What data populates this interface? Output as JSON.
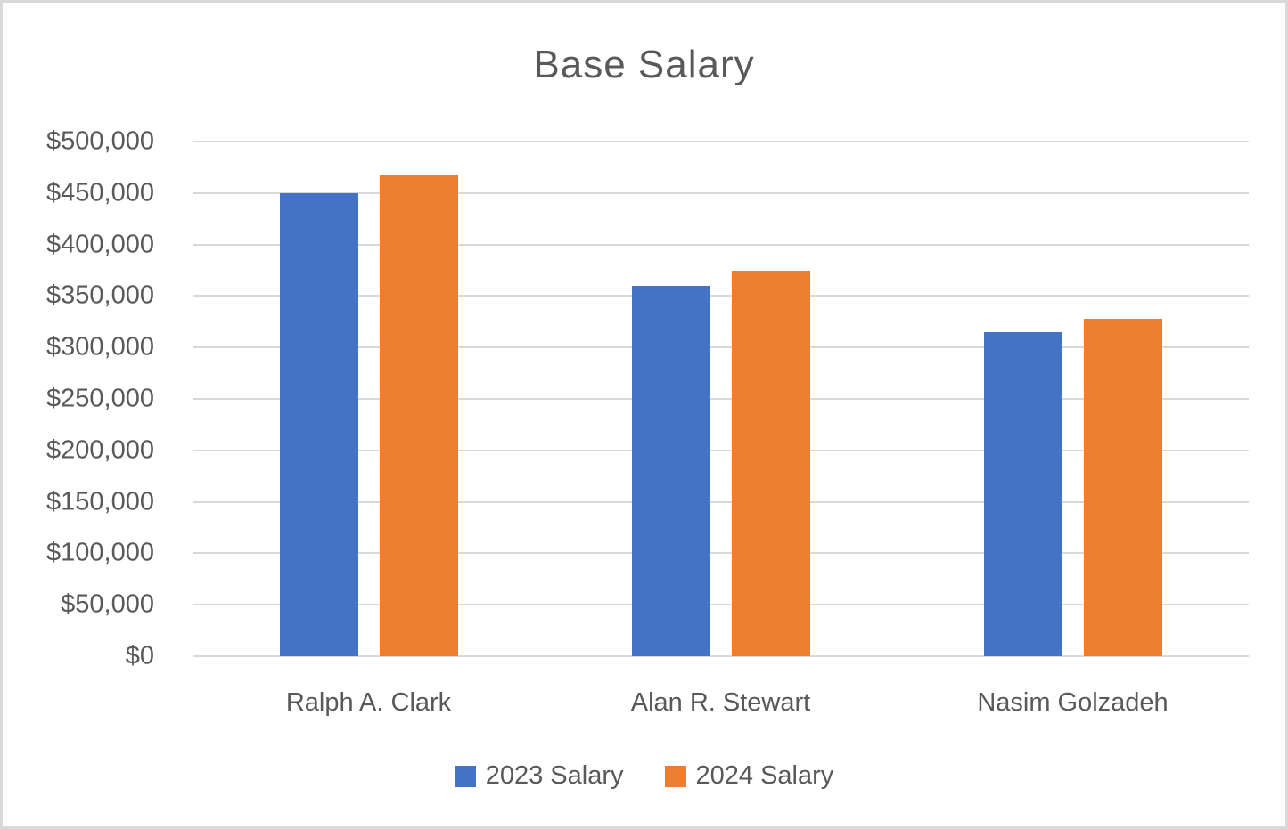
{
  "chart_data": {
    "type": "bar",
    "title": "Base Salary",
    "categories": [
      "Ralph A. Clark",
      "Alan R. Stewart",
      "Nasim Golzadeh"
    ],
    "series": [
      {
        "name": "2023 Salary",
        "color": "#4472C4",
        "values": [
          450000,
          360000,
          315000
        ]
      },
      {
        "name": "2024 Salary",
        "color": "#ED7D31",
        "values": [
          468000,
          375000,
          328000
        ]
      }
    ],
    "ylim": [
      0,
      500000
    ],
    "ytick_step": 50000,
    "ytick_labels": [
      "$0",
      "$50,000",
      "$100,000",
      "$150,000",
      "$200,000",
      "$250,000",
      "$300,000",
      "$350,000",
      "$400,000",
      "$450,000",
      "$500,000"
    ],
    "grid": true,
    "legend_position": "bottom",
    "colors": {
      "text": "#595959",
      "gridline": "#D9D9D9",
      "background": "#FFFFFF",
      "border": "#D9D9D9"
    }
  }
}
